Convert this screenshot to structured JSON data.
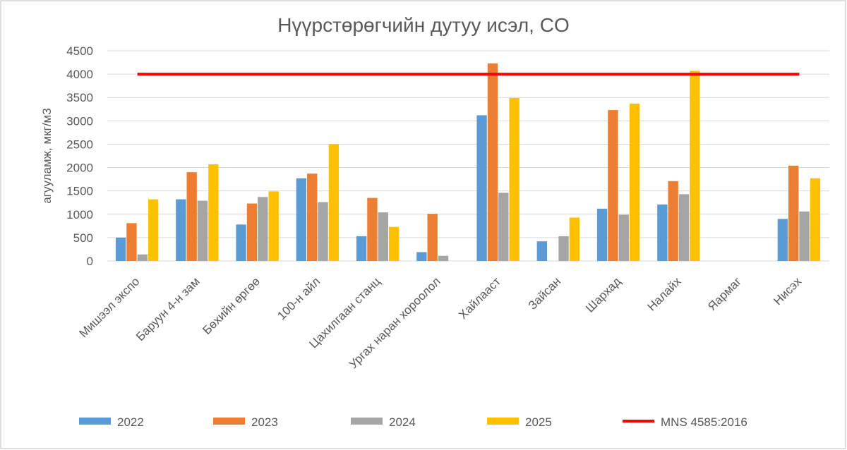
{
  "chart_data": {
    "type": "bar",
    "title": "Нүүрстөрөгчийн дутуу исэл, CO",
    "y_label": "агууламж, мкг/м3",
    "categories": [
      "Мишээл экспо",
      "Баруун 4-н зам",
      "Бөхийн өргөө",
      "100-н айл",
      "Цахилгаан станц",
      "Ургах наран хороолол",
      "Хайлааст",
      "Зайсан",
      "Шархад",
      "Налайх",
      "Яармаг",
      "Нисэх"
    ],
    "series": [
      {
        "name": "2022",
        "color": "#5b9bd5",
        "values": [
          500,
          1320,
          780,
          1770,
          530,
          190,
          3120,
          420,
          1120,
          1210,
          null,
          900
        ]
      },
      {
        "name": "2023",
        "color": "#ed7d31",
        "values": [
          810,
          1900,
          1230,
          1870,
          1350,
          1010,
          4230,
          null,
          3230,
          1710,
          null,
          2040
        ]
      },
      {
        "name": "2024",
        "color": "#a5a5a5",
        "values": [
          140,
          1290,
          1370,
          1260,
          1040,
          110,
          1460,
          530,
          990,
          1430,
          null,
          1060
        ]
      },
      {
        "name": "2025",
        "color": "#ffc000",
        "values": [
          1320,
          2070,
          1490,
          2500,
          730,
          null,
          3490,
          930,
          3370,
          4070,
          null,
          1770
        ]
      },
      {
        "name": "MNS 4585:2016",
        "type": "line",
        "color": "#ff0000",
        "values": [
          4000,
          4000,
          4000,
          4000,
          4000,
          4000,
          4000,
          4000,
          4000,
          4000,
          4000,
          4000
        ]
      }
    ],
    "ylim": [
      0,
      4500
    ],
    "yticks": [
      0,
      500,
      1000,
      1500,
      2000,
      2500,
      3000,
      3500,
      4000,
      4500
    ],
    "grid": true,
    "legend": "bottom"
  }
}
